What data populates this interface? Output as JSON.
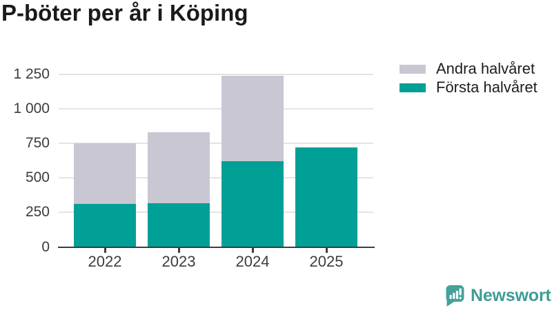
{
  "title": "P-böter per år i Köping",
  "chart_data": {
    "type": "bar",
    "stacked": true,
    "title": "P-böter per år i Köping",
    "categories": [
      "2022",
      "2023",
      "2024",
      "2025"
    ],
    "series": [
      {
        "name": "Första halvåret",
        "color": "#00a096",
        "values": [
          310,
          315,
          620,
          720
        ]
      },
      {
        "name": "Andra halvåret",
        "color": "#c9c7d2",
        "values": [
          440,
          515,
          620,
          0
        ]
      }
    ],
    "stack_totals": [
      750,
      830,
      1240,
      720
    ],
    "ylim": [
      0,
      1250
    ],
    "yticks": [
      {
        "value": 0,
        "label": "0"
      },
      {
        "value": 250,
        "label": "250"
      },
      {
        "value": 500,
        "label": "500"
      },
      {
        "value": 750,
        "label": "750"
      },
      {
        "value": 1000,
        "label": "1 000"
      },
      {
        "value": 1250,
        "label": "1 250"
      }
    ],
    "grid": true,
    "legend_position": "top-right",
    "legend": [
      {
        "label": "Andra halvåret",
        "color": "#c9c7d2"
      },
      {
        "label": "Första halvåret",
        "color": "#00a096"
      }
    ]
  },
  "branding": {
    "label": "Newsworthy",
    "icon": "newsworthy-logo-icon",
    "color": "#3e9c94"
  },
  "colors": {
    "first_half": "#00a096",
    "second_half": "#c9c7d2",
    "grid": "#e4e4e4",
    "axis": "#3d3d3d",
    "title": "#1a1a1a"
  }
}
